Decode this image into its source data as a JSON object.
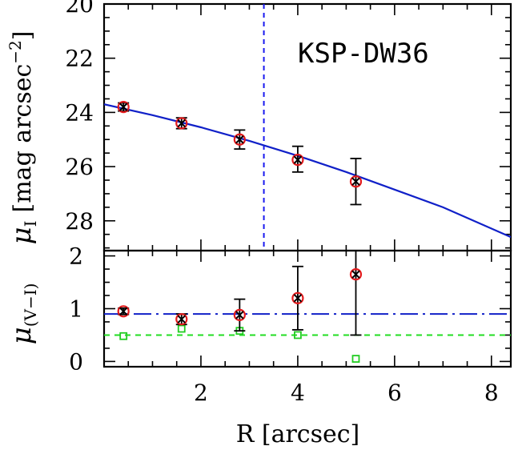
{
  "chart_data": [
    {
      "type": "scatter",
      "panel": "top",
      "annotation": "KSP-DW36",
      "ylabel": "μ_I [mag arcsec⁻²]",
      "ylabel_main": "μ",
      "ylabel_sub": "I",
      "ylabel_units": "[mag arcsec",
      "ylabel_units_exp": "−2",
      "ylabel_units_close": "]",
      "xlim": [
        0,
        8.4
      ],
      "ylim": [
        29.1,
        20
      ],
      "y_inverted": true,
      "yticks": [
        20,
        22,
        24,
        26,
        28
      ],
      "ytick_labels": [
        "20",
        "22",
        "24",
        "26",
        "28"
      ],
      "series": [
        {
          "kind": "points",
          "marker": "red-circle-black-cross",
          "x": [
            0.4,
            1.6,
            2.8,
            4.0,
            5.2
          ],
          "y": [
            23.8,
            24.4,
            25.0,
            25.75,
            26.55
          ],
          "yerr_low": [
            0.15,
            0.2,
            0.35,
            0.5,
            0.85
          ],
          "yerr_high": [
            0.15,
            0.2,
            0.35,
            0.45,
            0.85
          ]
        },
        {
          "kind": "line",
          "style": "solid",
          "x": [
            0,
            1,
            2,
            3,
            4,
            5,
            6,
            7,
            8.4
          ],
          "y": [
            23.7,
            24.1,
            24.55,
            25.05,
            25.6,
            26.2,
            26.85,
            27.5,
            28.6
          ]
        }
      ],
      "vline": {
        "x": 3.3,
        "style": "dashed"
      }
    },
    {
      "type": "scatter",
      "panel": "bottom",
      "xlabel": "R [arcsec]",
      "ylabel": "μ_(V−I)",
      "ylabel_main": "μ",
      "ylabel_sub": "(V−I)",
      "xlim": [
        0,
        8.4
      ],
      "ylim": [
        -0.1,
        2.1
      ],
      "xticks": [
        2,
        4,
        6,
        8
      ],
      "xtick_labels": [
        "2",
        "4",
        "6",
        "8"
      ],
      "yticks": [
        0,
        1,
        2
      ],
      "ytick_labels": [
        "0",
        "1",
        "2"
      ],
      "series": [
        {
          "kind": "points",
          "marker": "red-circle-black-cross",
          "x": [
            0.4,
            1.6,
            2.8,
            4.0,
            5.2
          ],
          "y": [
            0.95,
            0.8,
            0.88,
            1.2,
            1.65
          ],
          "yerr_low": [
            0.06,
            0.1,
            0.3,
            0.6,
            1.15
          ],
          "yerr_high": [
            0.06,
            0.1,
            0.3,
            0.6,
            1.15
          ]
        },
        {
          "kind": "points",
          "marker": "green-square",
          "x": [
            0.4,
            1.6,
            2.8,
            4.0,
            5.2
          ],
          "y": [
            0.48,
            0.62,
            0.58,
            0.5,
            0.05
          ]
        },
        {
          "kind": "hline",
          "style": "dash-dot",
          "y": 0.9
        },
        {
          "kind": "hline",
          "style": "dashed",
          "y": 0.5
        }
      ]
    }
  ],
  "colors": {
    "circle": "#e41a1c",
    "cross": "#000000",
    "error_bar": "#000000",
    "fit_line": "#1020c8",
    "vline": "#1a1af0",
    "hline_dashdot": "#1020c8",
    "hline_dashed": "#22dd22",
    "square": "#22cc22"
  }
}
